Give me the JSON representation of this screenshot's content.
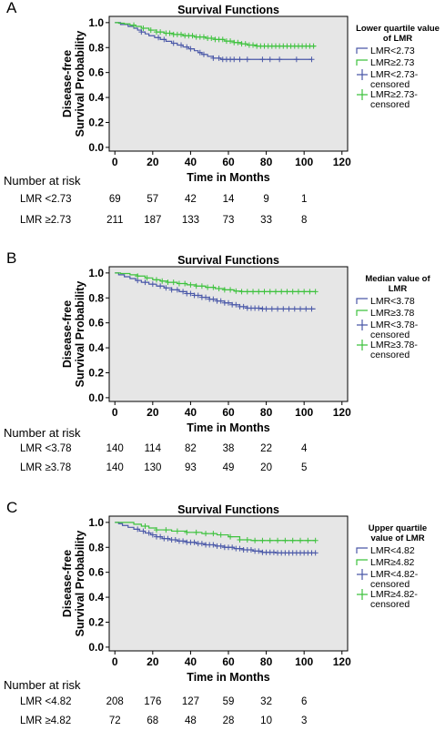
{
  "colors": {
    "low": "#4a58a8",
    "high": "#3ec23e",
    "plot_bg": "#e6e6e6"
  },
  "number_at_risk_label": "Number at risk",
  "chart_data": [
    {
      "panel_label": "A",
      "type": "line",
      "title": "Survival Functions",
      "xlabel": "Time in Months",
      "ylabel_line1": "Disease-free",
      "ylabel_line2": "Survival Probability",
      "xlim": [
        -3,
        123
      ],
      "ylim": [
        -0.03,
        1.05
      ],
      "xticks": [
        "0",
        "20",
        "40",
        "60",
        "80",
        "100",
        "120"
      ],
      "yticks": [
        "0.0",
        "0.2",
        "0.4",
        "0.6",
        "0.8",
        "1.0"
      ],
      "legend_title": [
        "Lower quartile value",
        "of LMR"
      ],
      "legend": [
        [
          "LMR<2.73"
        ],
        [
          "LMR≥2.73"
        ],
        [
          "LMR<2.73-",
          "censored"
        ],
        [
          "LMR≥2.73-",
          "censored"
        ]
      ],
      "series": [
        {
          "name": "LMR<2.73",
          "color_key": "low",
          "steps": [
            [
              0,
              1.0
            ],
            [
              3,
              0.985
            ],
            [
              7,
              0.97
            ],
            [
              10,
              0.955
            ],
            [
              12,
              0.94
            ],
            [
              14,
              0.925
            ],
            [
              16,
              0.91
            ],
            [
              18,
              0.895
            ],
            [
              21,
              0.88
            ],
            [
              24,
              0.865
            ],
            [
              27,
              0.85
            ],
            [
              30,
              0.835
            ],
            [
              33,
              0.82
            ],
            [
              36,
              0.805
            ],
            [
              39,
              0.79
            ],
            [
              42,
              0.775
            ],
            [
              44,
              0.76
            ],
            [
              46,
              0.745
            ],
            [
              49,
              0.73
            ],
            [
              52,
              0.715
            ],
            [
              56,
              0.705
            ]
          ],
          "end": 104,
          "censored": [
            14,
            23,
            26,
            31,
            35,
            38,
            40,
            45,
            47,
            52,
            55,
            57,
            59,
            61,
            63,
            66,
            70,
            78,
            82,
            87,
            96,
            104
          ]
        },
        {
          "name": "LMR≥2.73",
          "color_key": "high",
          "steps": [
            [
              0,
              1.0
            ],
            [
              2,
              0.995
            ],
            [
              5,
              0.99
            ],
            [
              8,
              0.98
            ],
            [
              11,
              0.97
            ],
            [
              14,
              0.955
            ],
            [
              18,
              0.94
            ],
            [
              22,
              0.925
            ],
            [
              26,
              0.915
            ],
            [
              31,
              0.905
            ],
            [
              36,
              0.895
            ],
            [
              42,
              0.885
            ],
            [
              48,
              0.875
            ],
            [
              53,
              0.865
            ],
            [
              58,
              0.852
            ],
            [
              63,
              0.84
            ],
            [
              67,
              0.83
            ],
            [
              70,
              0.82
            ],
            [
              75,
              0.812
            ]
          ],
          "end": 106,
          "censored": [
            10,
            15,
            19,
            22,
            24,
            27,
            29,
            31,
            33,
            35,
            37,
            39,
            41,
            43,
            45,
            47,
            49,
            51,
            53,
            55,
            57,
            59,
            61,
            63,
            65,
            67,
            69,
            71,
            73,
            75,
            77,
            79,
            81,
            83,
            85,
            87,
            89,
            91,
            93,
            95,
            97,
            99,
            101,
            103,
            105
          ]
        }
      ],
      "risk_rows": [
        {
          "label": "LMR <2.73",
          "values": [
            "69",
            "57",
            "42",
            "14",
            "9",
            "1"
          ]
        },
        {
          "label": "LMR ≥2.73",
          "values": [
            "211",
            "187",
            "133",
            "73",
            "33",
            "8"
          ]
        }
      ]
    },
    {
      "panel_label": "B",
      "type": "line",
      "title": "Survival Functions",
      "xlabel": "Time in Months",
      "ylabel_line1": "Disease-free",
      "ylabel_line2": "Survival Probability",
      "xlim": [
        -3,
        123
      ],
      "ylim": [
        -0.03,
        1.05
      ],
      "xticks": [
        "0",
        "20",
        "40",
        "60",
        "80",
        "100",
        "120"
      ],
      "yticks": [
        "0.0",
        "0.2",
        "0.4",
        "0.6",
        "0.8",
        "1.0"
      ],
      "legend_title": [
        "Median value of",
        "LMR"
      ],
      "legend": [
        [
          "LMR<3.78"
        ],
        [
          "LMR≥3.78"
        ],
        [
          "LMR<3.78-",
          "censored"
        ],
        [
          "LMR≥3.78-",
          "censored"
        ]
      ],
      "series": [
        {
          "name": "LMR<3.78",
          "color_key": "low",
          "steps": [
            [
              0,
              1.0
            ],
            [
              2,
              0.985
            ],
            [
              5,
              0.97
            ],
            [
              8,
              0.955
            ],
            [
              11,
              0.94
            ],
            [
              14,
              0.925
            ],
            [
              18,
              0.91
            ],
            [
              22,
              0.895
            ],
            [
              26,
              0.88
            ],
            [
              30,
              0.865
            ],
            [
              34,
              0.85
            ],
            [
              38,
              0.835
            ],
            [
              42,
              0.82
            ],
            [
              46,
              0.805
            ],
            [
              50,
              0.79
            ],
            [
              54,
              0.775
            ],
            [
              58,
              0.76
            ],
            [
              62,
              0.745
            ],
            [
              66,
              0.73
            ],
            [
              70,
              0.718
            ],
            [
              78,
              0.712
            ]
          ],
          "end": 106,
          "censored": [
            12,
            16,
            20,
            24,
            27,
            30,
            33,
            36,
            38,
            40,
            42,
            44,
            46,
            48,
            50,
            52,
            54,
            56,
            58,
            60,
            62,
            64,
            66,
            68,
            70,
            72,
            74,
            76,
            78,
            80,
            83,
            86,
            89,
            92,
            95,
            98,
            101,
            104
          ]
        },
        {
          "name": "LMR≥3.78",
          "color_key": "high",
          "steps": [
            [
              0,
              1.0
            ],
            [
              3,
              0.995
            ],
            [
              8,
              0.985
            ],
            [
              12,
              0.975
            ],
            [
              16,
              0.96
            ],
            [
              20,
              0.945
            ],
            [
              24,
              0.935
            ],
            [
              28,
              0.925
            ],
            [
              33,
              0.915
            ],
            [
              38,
              0.905
            ],
            [
              43,
              0.895
            ],
            [
              48,
              0.885
            ],
            [
              53,
              0.875
            ],
            [
              58,
              0.865
            ],
            [
              63,
              0.855
            ],
            [
              67,
              0.85
            ]
          ],
          "end": 106,
          "censored": [
            12,
            17,
            22,
            25,
            28,
            31,
            34,
            37,
            40,
            43,
            46,
            49,
            52,
            55,
            58,
            61,
            64,
            67,
            70,
            73,
            76,
            79,
            82,
            85,
            88,
            91,
            94,
            97,
            100,
            103,
            106
          ]
        }
      ],
      "risk_rows": [
        {
          "label": "LMR <3.78",
          "values": [
            "140",
            "114",
            "82",
            "38",
            "22",
            "4"
          ]
        },
        {
          "label": "LMR ≥3.78",
          "values": [
            "140",
            "130",
            "93",
            "49",
            "20",
            "5"
          ]
        }
      ]
    },
    {
      "panel_label": "C",
      "type": "line",
      "title": "Survival Functions",
      "xlabel": "Time in Months",
      "ylabel_line1": "Disease-free",
      "ylabel_line2": "Survival Probability",
      "xlim": [
        -3,
        123
      ],
      "ylim": [
        -0.03,
        1.05
      ],
      "xticks": [
        "0",
        "20",
        "40",
        "60",
        "80",
        "100",
        "120"
      ],
      "yticks": [
        "0.0",
        "0.2",
        "0.4",
        "0.6",
        "0.8",
        "1.0"
      ],
      "legend_title": [
        "Upper quartile",
        "value of LMR"
      ],
      "legend": [
        [
          "LMR<4.82"
        ],
        [
          "LMR≥4.82"
        ],
        [
          "LMR<4.82-",
          "censored"
        ],
        [
          "LMR≥4.82-",
          "censored"
        ]
      ],
      "series": [
        {
          "name": "LMR<4.82",
          "color_key": "low",
          "steps": [
            [
              0,
              1.0
            ],
            [
              2,
              0.99
            ],
            [
              4,
              0.975
            ],
            [
              7,
              0.96
            ],
            [
              10,
              0.945
            ],
            [
              13,
              0.93
            ],
            [
              16,
              0.915
            ],
            [
              19,
              0.9
            ],
            [
              22,
              0.885
            ],
            [
              25,
              0.87
            ],
            [
              29,
              0.86
            ],
            [
              33,
              0.85
            ],
            [
              38,
              0.84
            ],
            [
              43,
              0.83
            ],
            [
              48,
              0.82
            ],
            [
              53,
              0.81
            ],
            [
              58,
              0.8
            ],
            [
              63,
              0.79
            ],
            [
              68,
              0.78
            ],
            [
              73,
              0.77
            ],
            [
              78,
              0.76
            ],
            [
              85,
              0.755
            ]
          ],
          "end": 106,
          "censored": [
            12,
            15,
            18,
            20,
            22,
            24,
            26,
            28,
            30,
            32,
            34,
            36,
            38,
            40,
            42,
            44,
            46,
            48,
            50,
            52,
            54,
            56,
            58,
            60,
            62,
            64,
            66,
            68,
            70,
            72,
            74,
            76,
            78,
            80,
            82,
            84,
            86,
            88,
            90,
            92,
            94,
            96,
            98,
            100,
            102,
            104,
            106
          ]
        },
        {
          "name": "LMR≥4.82",
          "color_key": "high",
          "steps": [
            [
              0,
              1.0
            ],
            [
              10,
              0.985
            ],
            [
              14,
              0.97
            ],
            [
              18,
              0.955
            ],
            [
              22,
              0.94
            ],
            [
              30,
              0.93
            ],
            [
              38,
              0.92
            ],
            [
              46,
              0.91
            ],
            [
              54,
              0.9
            ],
            [
              60,
              0.885
            ],
            [
              66,
              0.86
            ],
            [
              72,
              0.855
            ]
          ],
          "end": 106,
          "censored": [
            16,
            22,
            27,
            33,
            38,
            43,
            48,
            52,
            56,
            61,
            66,
            70,
            74,
            78,
            82,
            86,
            90,
            94,
            98,
            102,
            106
          ]
        }
      ],
      "risk_rows": [
        {
          "label": "LMR <4.82",
          "values": [
            "208",
            "176",
            "127",
            "59",
            "32",
            "6"
          ]
        },
        {
          "label": "LMR ≥4.82",
          "values": [
            "72",
            "68",
            "48",
            "28",
            "10",
            "3"
          ]
        }
      ]
    }
  ]
}
